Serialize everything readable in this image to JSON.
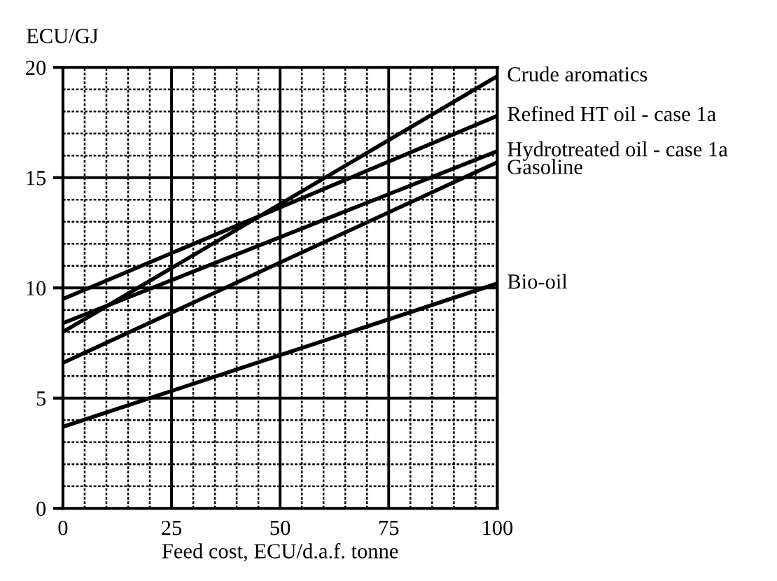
{
  "chart_data": {
    "type": "line",
    "xlabel": "Feed cost, ECU/d.a.f. tonne",
    "ylabel": "ECU/GJ",
    "x": [
      0,
      100
    ],
    "series": [
      {
        "name": "Crude aromatics",
        "color": "#000000",
        "values": [
          8.0,
          19.6
        ]
      },
      {
        "name": "Refined HT oil - case 1a",
        "color": "#000000",
        "values": [
          9.5,
          17.8
        ]
      },
      {
        "name": "Hydrotreated oil - case 1a",
        "color": "#000000",
        "values": [
          8.4,
          16.2
        ]
      },
      {
        "name": "Gasoline",
        "color": "#000000",
        "values": [
          6.6,
          15.7
        ]
      },
      {
        "name": "Bio-oil",
        "color": "#000000",
        "values": [
          3.7,
          10.2
        ]
      }
    ],
    "xlim": [
      0,
      100
    ],
    "xticks": [
      0,
      25,
      50,
      75,
      100
    ],
    "ylim": [
      0,
      20
    ],
    "yticks": [
      0,
      5,
      10,
      15,
      20
    ],
    "grid": true,
    "marker": "none",
    "line_style": "solid"
  }
}
